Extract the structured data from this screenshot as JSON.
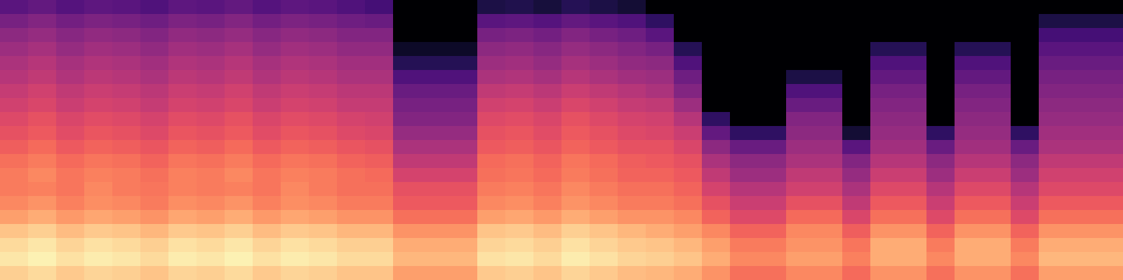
{
  "chart_data": {
    "type": "heatmap",
    "tick_labels": false,
    "zlim": [
      -80,
      0
    ],
    "cells": [
      [
        -58,
        -56,
        -59,
        -57,
        -58,
        -60,
        -57,
        -58,
        -56,
        -59,
        -57,
        -58,
        -60,
        -62,
        -80,
        -80,
        -80,
        -70,
        -69,
        -71,
        -68,
        -70,
        -72,
        -80,
        -80,
        -80,
        -80,
        -80,
        -80,
        -80,
        -80,
        -80,
        -80,
        -80,
        -80,
        -80,
        -80,
        -80,
        -80,
        -80
      ],
      [
        -52,
        -50,
        -53,
        -51,
        -52,
        -54,
        -51,
        -52,
        -50,
        -53,
        -51,
        -52,
        -54,
        -55,
        -80,
        -80,
        -80,
        -58,
        -57,
        -59,
        -56,
        -58,
        -60,
        -66,
        -80,
        -80,
        -80,
        -80,
        -80,
        -80,
        -80,
        -80,
        -80,
        -80,
        -80,
        -80,
        -80,
        -70,
        -70,
        -70
      ],
      [
        -48,
        -46,
        -49,
        -47,
        -48,
        -50,
        -47,
        -48,
        -46,
        -49,
        -47,
        -48,
        -50,
        -50,
        -80,
        -80,
        -80,
        -52,
        -51,
        -53,
        -50,
        -52,
        -54,
        -58,
        -80,
        -80,
        -80,
        -80,
        -80,
        -80,
        -80,
        -80,
        -80,
        -80,
        -80,
        -80,
        -80,
        -62,
        -62,
        -62
      ],
      [
        -45,
        -43,
        -46,
        -44,
        -45,
        -47,
        -44,
        -45,
        -43,
        -46,
        -44,
        -45,
        -47,
        -47,
        -74,
        -74,
        -74,
        -48,
        -47,
        -49,
        -46,
        -48,
        -50,
        -52,
        -68,
        -80,
        -80,
        -80,
        -80,
        -80,
        -80,
        -68,
        -68,
        -80,
        -68,
        -68,
        -80,
        -58,
        -58,
        -58
      ],
      [
        -42,
        -40,
        -43,
        -41,
        -42,
        -44,
        -41,
        -42,
        -40,
        -43,
        -41,
        -42,
        -44,
        -44,
        -68,
        -68,
        -68,
        -45,
        -44,
        -46,
        -43,
        -45,
        -47,
        -48,
        -60,
        -80,
        -80,
        -80,
        -80,
        -80,
        -80,
        -60,
        -60,
        -80,
        -60,
        -60,
        -80,
        -55,
        -55,
        -55
      ],
      [
        -40,
        -38,
        -41,
        -39,
        -40,
        -42,
        -39,
        -40,
        -38,
        -41,
        -39,
        -40,
        -42,
        -42,
        -60,
        -60,
        -60,
        -42,
        -41,
        -43,
        -40,
        -42,
        -44,
        -45,
        -54,
        -80,
        -80,
        -80,
        -70,
        -70,
        -80,
        -56,
        -56,
        -80,
        -56,
        -56,
        -80,
        -52,
        -52,
        -52
      ],
      [
        -37,
        -35,
        -38,
        -36,
        -37,
        -39,
        -36,
        -37,
        -35,
        -38,
        -36,
        -37,
        -39,
        -39,
        -55,
        -55,
        -55,
        -38,
        -37,
        -39,
        -36,
        -38,
        -40,
        -42,
        -50,
        -80,
        -80,
        -80,
        -60,
        -60,
        -80,
        -52,
        -52,
        -80,
        -52,
        -52,
        -80,
        -50,
        -50,
        -50
      ],
      [
        -35,
        -33,
        -36,
        -34,
        -35,
        -37,
        -34,
        -35,
        -33,
        -36,
        -34,
        -35,
        -37,
        -37,
        -52,
        -52,
        -52,
        -35,
        -34,
        -36,
        -33,
        -35,
        -37,
        -38,
        -45,
        -80,
        -80,
        -80,
        -55,
        -55,
        -80,
        -50,
        -50,
        -80,
        -50,
        -50,
        -80,
        -48,
        -48,
        -48
      ],
      [
        -32,
        -30,
        -33,
        -31,
        -32,
        -34,
        -31,
        -32,
        -30,
        -33,
        -31,
        -32,
        -34,
        -35,
        -50,
        -50,
        -50,
        -32,
        -31,
        -33,
        -30,
        -32,
        -34,
        -35,
        -40,
        -66,
        -80,
        -80,
        -50,
        -50,
        -80,
        -48,
        -48,
        -80,
        -48,
        -48,
        -80,
        -46,
        -46,
        -46
      ],
      [
        -30,
        -28,
        -31,
        -29,
        -30,
        -32,
        -29,
        -30,
        -28,
        -31,
        -29,
        -30,
        -32,
        -33,
        -46,
        -46,
        -46,
        -30,
        -29,
        -31,
        -28,
        -30,
        -32,
        -33,
        -36,
        -56,
        -66,
        -66,
        -48,
        -48,
        -72,
        -46,
        -46,
        -66,
        -46,
        -46,
        -66,
        -44,
        -44,
        -44
      ],
      [
        -27,
        -25,
        -28,
        -26,
        -27,
        -29,
        -26,
        -27,
        -25,
        -28,
        -26,
        -27,
        -29,
        -30,
        -42,
        -42,
        -42,
        -28,
        -27,
        -29,
        -26,
        -28,
        -30,
        -30,
        -33,
        -48,
        -55,
        -55,
        -45,
        -45,
        -58,
        -44,
        -44,
        -55,
        -44,
        -44,
        -55,
        -42,
        -42,
        -42
      ],
      [
        -24,
        -22,
        -25,
        -23,
        -24,
        -26,
        -23,
        -24,
        -22,
        -25,
        -23,
        -24,
        -26,
        -27,
        -38,
        -38,
        -38,
        -25,
        -24,
        -26,
        -23,
        -25,
        -27,
        -28,
        -30,
        -42,
        -48,
        -48,
        -42,
        -42,
        -50,
        -40,
        -40,
        -48,
        -40,
        -40,
        -48,
        -38,
        -38,
        -38
      ],
      [
        -22,
        -20,
        -23,
        -21,
        -22,
        -24,
        -21,
        -22,
        -20,
        -23,
        -21,
        -22,
        -24,
        -25,
        -34,
        -34,
        -34,
        -24,
        -23,
        -25,
        -22,
        -24,
        -26,
        -26,
        -28,
        -38,
        -45,
        -45,
        -38,
        -38,
        -46,
        -36,
        -36,
        -45,
        -36,
        -36,
        -45,
        -35,
        -35,
        -35
      ],
      [
        -22,
        -21,
        -23,
        -20,
        -22,
        -23,
        -21,
        -22,
        -21,
        -23,
        -20,
        -22,
        -24,
        -24,
        -30,
        -30,
        -30,
        -22,
        -21,
        -23,
        -20,
        -22,
        -24,
        -24,
        -26,
        -34,
        -40,
        -40,
        -35,
        -35,
        -42,
        -32,
        -32,
        -40,
        -32,
        -32,
        -40,
        -32,
        -32,
        -32
      ],
      [
        -20,
        -18,
        -21,
        -19,
        -20,
        -22,
        -19,
        -20,
        -18,
        -21,
        -19,
        -20,
        -22,
        -22,
        -28,
        -28,
        -28,
        -20,
        -19,
        -21,
        -18,
        -20,
        -22,
        -22,
        -24,
        -30,
        -36,
        -36,
        -30,
        -30,
        -38,
        -28,
        -28,
        -36,
        -28,
        -28,
        -36,
        -28,
        -28,
        -28
      ],
      [
        -16,
        -14,
        -17,
        -15,
        -16,
        -18,
        -15,
        -16,
        -14,
        -17,
        -15,
        -16,
        -18,
        -18,
        -24,
        -24,
        -24,
        -16,
        -15,
        -17,
        -14,
        -16,
        -18,
        -18,
        -20,
        -26,
        -32,
        -32,
        -25,
        -25,
        -33,
        -24,
        -24,
        -32,
        -24,
        -24,
        -32,
        -24,
        -24,
        -24
      ],
      [
        -10,
        -8,
        -11,
        -9,
        -10,
        -12,
        -9,
        -10,
        -8,
        -11,
        -9,
        -10,
        -12,
        -12,
        -18,
        -18,
        -18,
        -10,
        -9,
        -11,
        -8,
        -10,
        -12,
        -14,
        -16,
        -20,
        -26,
        -26,
        -20,
        -20,
        -27,
        -18,
        -18,
        -26,
        -18,
        -18,
        -26,
        -18,
        -18,
        -18
      ],
      [
        -6,
        -4,
        -7,
        -5,
        -6,
        -8,
        -5,
        -6,
        -4,
        -7,
        -5,
        -6,
        -8,
        -8,
        -14,
        -14,
        -14,
        -7,
        -6,
        -8,
        -5,
        -7,
        -9,
        -10,
        -12,
        -16,
        -22,
        -22,
        -18,
        -18,
        -23,
        -14,
        -14,
        -22,
        -14,
        -14,
        -22,
        -14,
        -14,
        -14
      ],
      [
        -4,
        -2,
        -5,
        -3,
        -4,
        -6,
        -3,
        -4,
        -2,
        -5,
        -3,
        -4,
        -6,
        -6,
        -12,
        -12,
        -12,
        -5,
        -4,
        -6,
        -3,
        -5,
        -7,
        -8,
        -10,
        -14,
        -20,
        -20,
        -16,
        -16,
        -21,
        -14,
        -14,
        -20,
        -14,
        -14,
        -20,
        -12,
        -12,
        -12
      ],
      [
        -8,
        -6,
        -9,
        -7,
        -8,
        -10,
        -7,
        -8,
        -6,
        -9,
        -7,
        -8,
        -10,
        -10,
        -16,
        -16,
        -16,
        -9,
        -8,
        -10,
        -7,
        -9,
        -11,
        -12,
        -14,
        -18,
        -24,
        -24,
        -20,
        -20,
        -25,
        -18,
        -18,
        -24,
        -18,
        -18,
        -24,
        -16,
        -16,
        -16
      ]
    ]
  }
}
